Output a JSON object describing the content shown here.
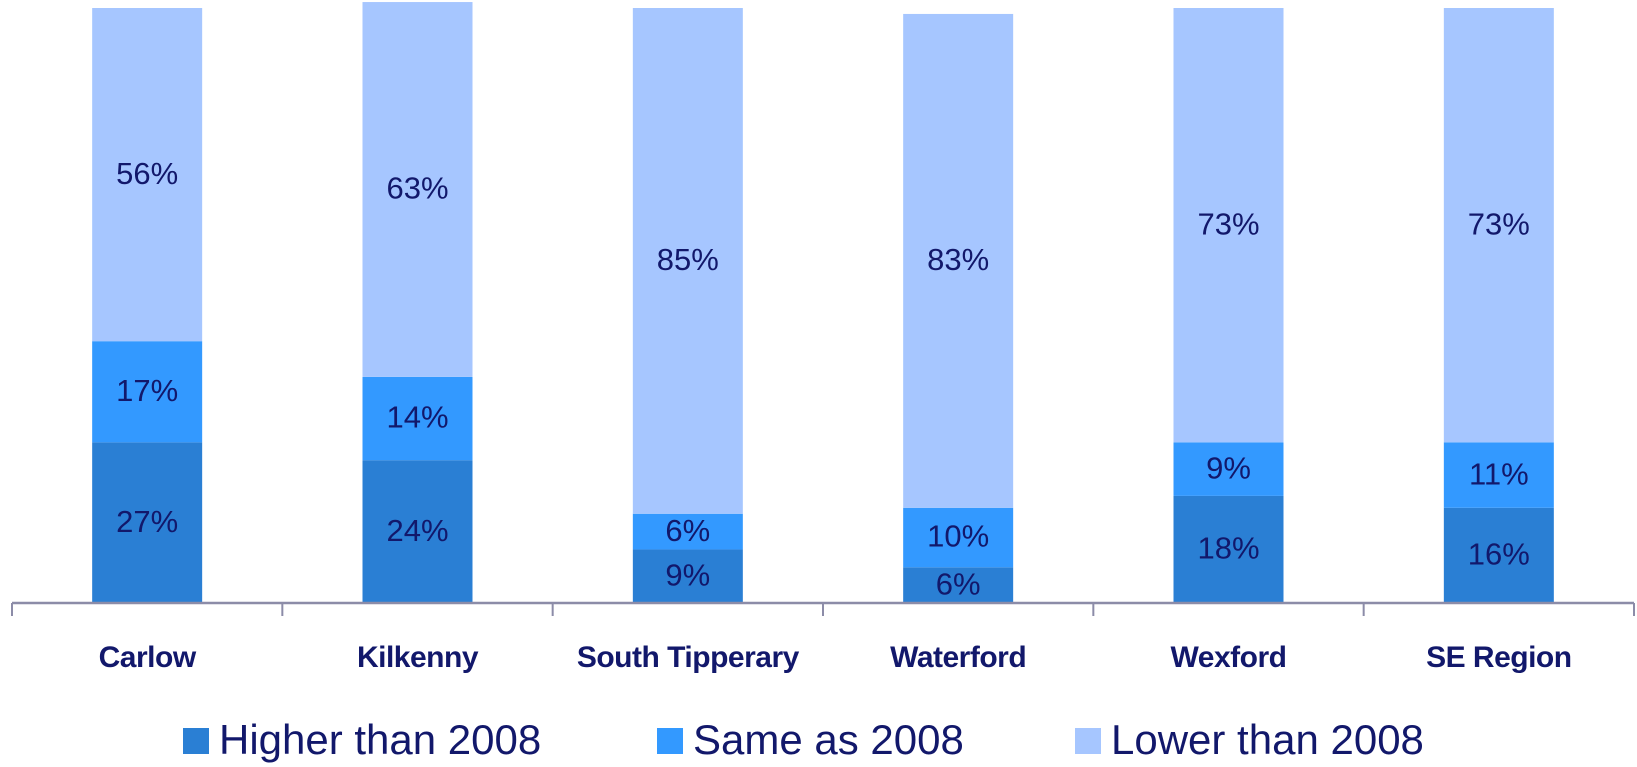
{
  "chart_data": {
    "type": "stacked-bar",
    "categories": [
      "Carlow",
      "Kilkenny",
      "South Tipperary",
      "Waterford",
      "Wexford",
      "SE Region"
    ],
    "series": [
      {
        "name": "Higher than 2008",
        "color": "#2a7fd4",
        "values": [
          27,
          24,
          9,
          6,
          18,
          16
        ],
        "value_labels": [
          "27%",
          "24%",
          "9%",
          "6%",
          "18%",
          "16%"
        ]
      },
      {
        "name": "Same as 2008",
        "color": "#3399ff",
        "values": [
          17,
          14,
          6,
          10,
          9,
          11
        ],
        "value_labels": [
          "17%",
          "14%",
          "6%",
          "10%",
          "9%",
          "11%"
        ]
      },
      {
        "name": "Lower than 2008",
        "color": "#a6c6ff",
        "values": [
          56,
          63,
          85,
          83,
          73,
          73
        ],
        "value_labels": [
          "56%",
          "63%",
          "85%",
          "83%",
          "73%",
          "73%"
        ]
      }
    ],
    "ylim": [
      0,
      100
    ],
    "legend": "bottom"
  }
}
